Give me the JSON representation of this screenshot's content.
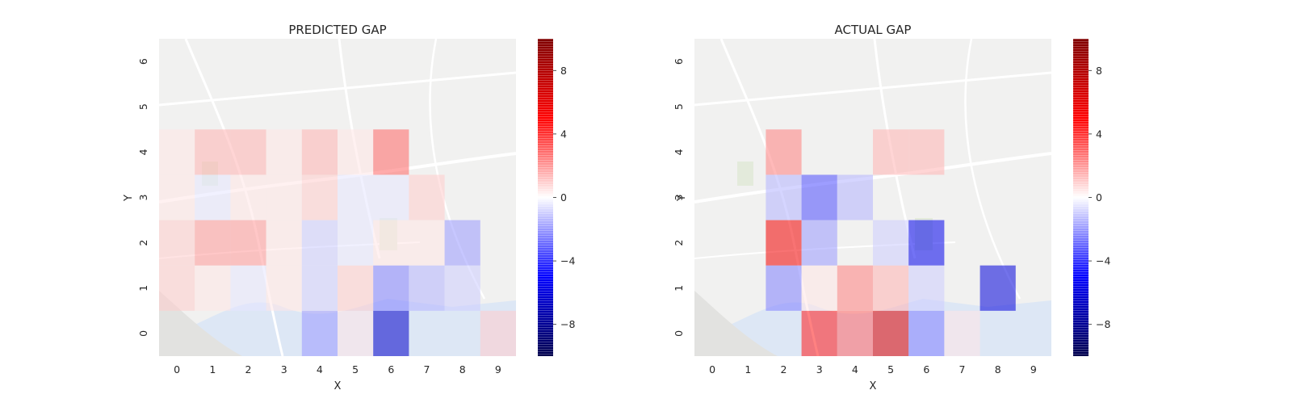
{
  "charts": [
    {
      "title": "PREDICTED GAP",
      "xlabel": "X",
      "ylabel": "Y",
      "x_ticks": [
        "0",
        "1",
        "2",
        "3",
        "4",
        "5",
        "6",
        "7",
        "8",
        "9"
      ],
      "y_ticks": [
        "0",
        "1",
        "2",
        "3",
        "4",
        "5",
        "6"
      ],
      "colorbar_ticks": [
        "8",
        "4",
        "0",
        "−4",
        "−8"
      ]
    },
    {
      "title": "ACTUAL GAP",
      "xlabel": "X",
      "ylabel": "Y",
      "x_ticks": [
        "0",
        "1",
        "2",
        "3",
        "4",
        "5",
        "6",
        "7",
        "8",
        "9"
      ],
      "y_ticks": [
        "0",
        "1",
        "2",
        "3",
        "4",
        "5",
        "6"
      ],
      "colorbar_ticks": [
        "8",
        "4",
        "0",
        "−4",
        "−8"
      ]
    }
  ],
  "chart_data": [
    {
      "type": "heatmap",
      "title": "PREDICTED GAP",
      "xlabel": "X",
      "ylabel": "Y",
      "x": [
        0,
        1,
        2,
        3,
        4,
        5,
        6,
        7,
        8,
        9
      ],
      "y": [
        0,
        1,
        2,
        3,
        4,
        5,
        6
      ],
      "zlim": [
        -10,
        10
      ],
      "colormap": "seismic",
      "background": "street map of Porto",
      "values": [
        [
          null,
          null,
          null,
          null,
          -2.0,
          0.5,
          -6.5,
          null,
          null,
          1.0
        ],
        [
          1.0,
          0.5,
          -0.5,
          0.5,
          -1.0,
          1.0,
          -2.5,
          -1.5,
          -1.0,
          null
        ],
        [
          1.0,
          2.0,
          2.0,
          0.5,
          -1.0,
          -0.5,
          0.5,
          0.5,
          -2.0,
          null
        ],
        [
          0.5,
          -0.5,
          0.5,
          0.5,
          1.0,
          -0.5,
          -0.5,
          1.0,
          null,
          null
        ],
        [
          0.5,
          1.5,
          1.5,
          0.5,
          1.5,
          0.5,
          3.0,
          null,
          null,
          null
        ],
        [
          null,
          null,
          null,
          null,
          null,
          null,
          null,
          null,
          null,
          null
        ],
        [
          null,
          null,
          null,
          null,
          null,
          null,
          null,
          null,
          null,
          null
        ]
      ]
    },
    {
      "type": "heatmap",
      "title": "ACTUAL GAP",
      "xlabel": "X",
      "ylabel": "Y",
      "x": [
        0,
        1,
        2,
        3,
        4,
        5,
        6,
        7,
        8,
        9
      ],
      "y": [
        0,
        1,
        2,
        3,
        4,
        5,
        6
      ],
      "zlim": [
        -10,
        10
      ],
      "colormap": "seismic",
      "background": "street map of Porto",
      "values": [
        [
          null,
          null,
          null,
          4.5,
          3.0,
          6.5,
          -2.5,
          0.5,
          null,
          null
        ],
        [
          null,
          null,
          -2.5,
          0.5,
          2.5,
          1.5,
          -1.0,
          null,
          -6.0,
          null
        ],
        [
          null,
          null,
          5.5,
          -2.0,
          null,
          -1.0,
          -5.5,
          null,
          null,
          null
        ],
        [
          null,
          null,
          -1.5,
          -3.5,
          -1.5,
          null,
          null,
          null,
          null,
          null
        ],
        [
          null,
          null,
          2.5,
          null,
          null,
          1.5,
          1.5,
          null,
          null,
          null
        ],
        [
          null,
          null,
          null,
          null,
          null,
          null,
          null,
          null,
          null,
          null
        ],
        [
          null,
          null,
          null,
          null,
          null,
          null,
          null,
          null,
          null,
          null
        ]
      ]
    }
  ]
}
